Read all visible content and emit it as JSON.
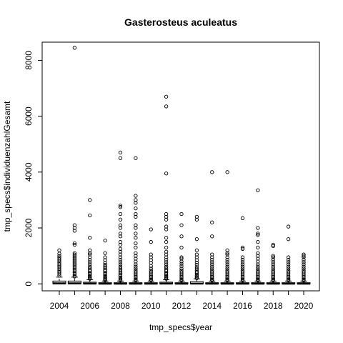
{
  "chart_data": {
    "type": "box",
    "title": "Gasterosteus aculeatus",
    "xlabel": "tmp_specs$year",
    "ylabel": "tmp_specs$individuenzahlGesamt",
    "categories": [
      "2004",
      "2005",
      "2006",
      "2007",
      "2008",
      "2009",
      "2010",
      "2011",
      "2012",
      "2013",
      "2014",
      "2015",
      "2016",
      "2017",
      "2018",
      "2019",
      "2020"
    ],
    "x_tick_labels": [
      "2004",
      "2006",
      "2008",
      "2010",
      "2012",
      "2014",
      "2016",
      "2018",
      "2020"
    ],
    "y_ticks": [
      0,
      2000,
      4000,
      6000,
      8000
    ],
    "ylim": [
      -250,
      8650
    ],
    "boxes": [
      {
        "q1": 0,
        "median": 20,
        "q3": 100,
        "whisker_high": 240,
        "outliers": [
          300,
          360,
          420,
          480,
          540,
          600,
          650,
          700,
          760,
          820,
          880,
          940,
          1000,
          1080,
          1200
        ]
      },
      {
        "q1": 0,
        "median": 20,
        "q3": 100,
        "whisker_high": 240,
        "outliers": [
          260,
          300,
          350,
          400,
          450,
          500,
          550,
          600,
          650,
          700,
          750,
          800,
          850,
          900,
          950,
          1000,
          1050,
          1100,
          1400,
          1450,
          1900,
          2000,
          2100,
          8450
        ]
      },
      {
        "q1": 0,
        "median": 10,
        "q3": 60,
        "whisker_high": 150,
        "outliers": [
          180,
          220,
          260,
          300,
          350,
          400,
          450,
          500,
          560,
          620,
          700,
          780,
          860,
          950,
          1050,
          1100,
          1200,
          1650,
          2450,
          3000
        ]
      },
      {
        "q1": 0,
        "median": 5,
        "q3": 40,
        "whisker_high": 100,
        "outliers": [
          120,
          150,
          180,
          220,
          260,
          300,
          350,
          400,
          450,
          500,
          560,
          620,
          680,
          750,
          850,
          950,
          1100,
          1550
        ]
      },
      {
        "q1": 0,
        "median": 5,
        "q3": 40,
        "whisker_high": 100,
        "outliers": [
          120,
          150,
          190,
          230,
          280,
          330,
          380,
          440,
          500,
          560,
          620,
          700,
          780,
          860,
          950,
          1050,
          1150,
          1250,
          1400,
          1500,
          1700,
          1800,
          2000,
          2100,
          2300,
          2500,
          2750,
          2800,
          4500,
          4700
        ]
      },
      {
        "q1": 0,
        "median": 5,
        "q3": 40,
        "whisker_high": 100,
        "outliers": [
          120,
          160,
          200,
          250,
          300,
          360,
          420,
          480,
          550,
          620,
          700,
          800,
          900,
          1000,
          1100,
          1300,
          1450,
          1650,
          1800,
          2000,
          2100,
          2400,
          2500,
          2700,
          2900,
          3000,
          3150,
          4500
        ]
      },
      {
        "q1": 0,
        "median": 5,
        "q3": 40,
        "whisker_high": 100,
        "outliers": [
          120,
          160,
          200,
          250,
          300,
          360,
          420,
          480,
          550,
          640,
          750,
          850,
          950,
          1050,
          1500,
          1950
        ]
      },
      {
        "q1": 0,
        "median": 10,
        "q3": 60,
        "whisker_high": 150,
        "outliers": [
          180,
          220,
          260,
          300,
          350,
          400,
          450,
          500,
          560,
          620,
          700,
          780,
          860,
          950,
          1050,
          1150,
          1300,
          1500,
          1650,
          1950,
          2050,
          2300,
          2400,
          2500,
          3950,
          6350,
          6700
        ]
      },
      {
        "q1": 0,
        "median": 5,
        "q3": 40,
        "whisker_high": 100,
        "outliers": [
          120,
          160,
          200,
          250,
          300,
          360,
          420,
          480,
          550,
          640,
          720,
          800,
          900,
          950,
          1300,
          1700,
          2100,
          2500
        ]
      },
      {
        "q1": 0,
        "median": 10,
        "q3": 80,
        "whisker_high": 180,
        "outliers": [
          200,
          240,
          280,
          320,
          370,
          420,
          480,
          540,
          600,
          680,
          760,
          850,
          950,
          1050,
          1200,
          1600,
          2300,
          2400
        ]
      },
      {
        "q1": 0,
        "median": 5,
        "q3": 40,
        "whisker_high": 100,
        "outliers": [
          120,
          160,
          200,
          250,
          300,
          360,
          420,
          480,
          550,
          620,
          700,
          780,
          860,
          950,
          1050,
          1700,
          2200,
          4000
        ]
      },
      {
        "q1": 0,
        "median": 5,
        "q3": 40,
        "whisker_high": 100,
        "outliers": [
          120,
          160,
          200,
          250,
          300,
          360,
          420,
          480,
          550,
          620,
          700,
          780,
          860,
          950,
          1050,
          1100,
          1200,
          4000
        ]
      },
      {
        "q1": 0,
        "median": 5,
        "q3": 40,
        "whisker_high": 100,
        "outliers": [
          120,
          160,
          200,
          250,
          300,
          360,
          420,
          480,
          550,
          620,
          700,
          780,
          860,
          950,
          1250,
          1300,
          2350
        ]
      },
      {
        "q1": 0,
        "median": 5,
        "q3": 40,
        "whisker_high": 100,
        "outliers": [
          120,
          160,
          200,
          250,
          300,
          360,
          420,
          480,
          550,
          620,
          700,
          800,
          900,
          1000,
          1100,
          1300,
          1500,
          1750,
          1800,
          2000,
          3350
        ]
      },
      {
        "q1": 0,
        "median": 5,
        "q3": 40,
        "whisker_high": 100,
        "outliers": [
          120,
          160,
          200,
          250,
          300,
          360,
          420,
          480,
          550,
          620,
          700,
          780,
          860,
          950,
          1000,
          1350,
          1400
        ]
      },
      {
        "q1": 0,
        "median": 5,
        "q3": 40,
        "whisker_high": 100,
        "outliers": [
          120,
          160,
          200,
          250,
          300,
          360,
          420,
          480,
          550,
          620,
          700,
          780,
          860,
          950,
          1600,
          2050
        ]
      },
      {
        "q1": 0,
        "median": 5,
        "q3": 40,
        "whisker_high": 100,
        "outliers": [
          120,
          160,
          200,
          250,
          300,
          360,
          420,
          480,
          550,
          620,
          700,
          780,
          860,
          950,
          1000,
          1050
        ]
      }
    ]
  }
}
